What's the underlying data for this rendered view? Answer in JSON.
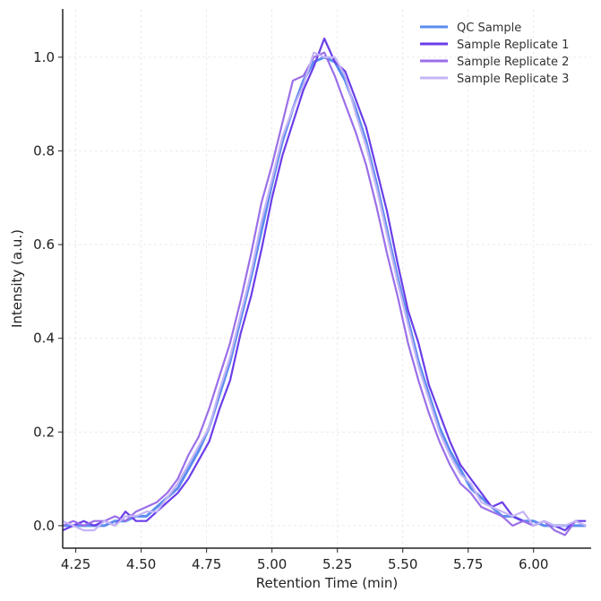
{
  "chart_data": {
    "type": "line",
    "title": "",
    "xlabel": "Retention Time (min)",
    "ylabel": "Intensity (a.u.)",
    "xlim": [
      4.2,
      6.22
    ],
    "ylim": [
      -0.048,
      1.103
    ],
    "xticks": [
      "4.25",
      "4.50",
      "4.75",
      "5.00",
      "5.25",
      "5.50",
      "5.75",
      "6.00"
    ],
    "yticks": [
      "0.0",
      "0.2",
      "0.4",
      "0.6",
      "0.8",
      "1.0"
    ],
    "grid": true,
    "legend_position": "top-right",
    "x": [
      4.2,
      4.24,
      4.28,
      4.32,
      4.36,
      4.4,
      4.44,
      4.48,
      4.52,
      4.56,
      4.6,
      4.64,
      4.68,
      4.72,
      4.76,
      4.8,
      4.84,
      4.88,
      4.92,
      4.96,
      5.0,
      5.04,
      5.08,
      5.12,
      5.16,
      5.2,
      5.24,
      5.28,
      5.32,
      5.36,
      5.4,
      5.44,
      5.48,
      5.52,
      5.56,
      5.6,
      5.64,
      5.68,
      5.72,
      5.76,
      5.8,
      5.84,
      5.88,
      5.92,
      5.96,
      6.0,
      6.04,
      6.08,
      6.12,
      6.16,
      6.2
    ],
    "series": [
      {
        "name": "QC Sample",
        "color": "#5B8DEF",
        "values": [
          0.0,
          0.0,
          0.0,
          0.0,
          0.0,
          0.01,
          0.01,
          0.02,
          0.02,
          0.04,
          0.06,
          0.08,
          0.12,
          0.16,
          0.21,
          0.28,
          0.35,
          0.44,
          0.53,
          0.63,
          0.73,
          0.82,
          0.89,
          0.95,
          0.99,
          1.0,
          0.99,
          0.95,
          0.89,
          0.82,
          0.73,
          0.63,
          0.53,
          0.44,
          0.35,
          0.28,
          0.21,
          0.16,
          0.12,
          0.08,
          0.06,
          0.04,
          0.02,
          0.02,
          0.01,
          0.01,
          0.0,
          0.0,
          0.0,
          0.0,
          0.0
        ]
      },
      {
        "name": "Sample Replicate 1",
        "color": "#6A3DE8",
        "values": [
          -0.01,
          0.0,
          0.01,
          0.0,
          0.01,
          0.0,
          0.03,
          0.01,
          0.01,
          0.03,
          0.05,
          0.07,
          0.1,
          0.14,
          0.18,
          0.25,
          0.31,
          0.41,
          0.49,
          0.59,
          0.7,
          0.79,
          0.86,
          0.93,
          0.98,
          1.04,
          0.99,
          0.97,
          0.91,
          0.85,
          0.76,
          0.67,
          0.56,
          0.46,
          0.39,
          0.3,
          0.24,
          0.18,
          0.13,
          0.1,
          0.07,
          0.04,
          0.05,
          0.02,
          0.01,
          0.0,
          0.01,
          0.0,
          -0.01,
          0.01,
          0.01
        ]
      },
      {
        "name": "Sample Replicate 2",
        "color": "#9B6FE8",
        "values": [
          0.0,
          0.01,
          0.0,
          0.01,
          0.01,
          0.02,
          0.01,
          0.03,
          0.04,
          0.05,
          0.07,
          0.1,
          0.15,
          0.19,
          0.25,
          0.32,
          0.39,
          0.48,
          0.58,
          0.69,
          0.77,
          0.86,
          0.95,
          0.96,
          1.0,
          1.01,
          0.96,
          0.9,
          0.84,
          0.77,
          0.68,
          0.58,
          0.49,
          0.39,
          0.31,
          0.24,
          0.18,
          0.13,
          0.09,
          0.07,
          0.04,
          0.03,
          0.02,
          0.0,
          0.01,
          0.0,
          0.01,
          -0.01,
          -0.02,
          0.01,
          0.0
        ]
      },
      {
        "name": "Sample Replicate 3",
        "color": "#C4B5F5",
        "values": [
          0.01,
          0.0,
          -0.01,
          -0.01,
          0.01,
          0.0,
          0.02,
          0.02,
          0.03,
          0.03,
          0.06,
          0.09,
          0.13,
          0.17,
          0.21,
          0.29,
          0.36,
          0.45,
          0.54,
          0.65,
          0.74,
          0.83,
          0.89,
          0.94,
          1.01,
          1.0,
          1.0,
          0.96,
          0.88,
          0.81,
          0.72,
          0.62,
          0.52,
          0.43,
          0.34,
          0.27,
          0.2,
          0.15,
          0.11,
          0.09,
          0.05,
          0.04,
          0.03,
          0.02,
          0.03,
          0.0,
          0.01,
          0.0,
          0.0,
          0.01,
          0.0
        ]
      }
    ]
  }
}
